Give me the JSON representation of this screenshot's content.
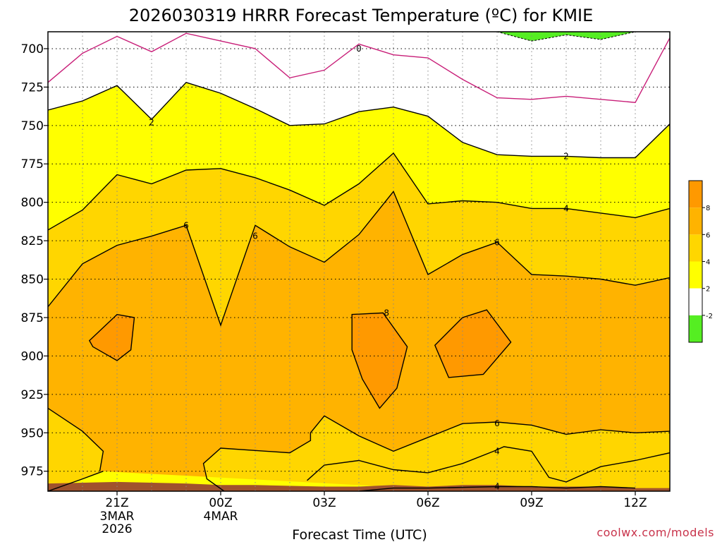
{
  "chart_data": {
    "type": "contour",
    "title": "2026030319 HRRR Forecast Temperature (ºC) for KMIE",
    "xlabel": "Forecast Time (UTC)",
    "ylabel": "",
    "y_scale": "pressure-inverted",
    "ylim": [
      988,
      689
    ],
    "y_ticks": [
      700,
      725,
      750,
      775,
      800,
      825,
      850,
      875,
      900,
      925,
      950,
      975
    ],
    "x_ticks": [
      {
        "hour": 2,
        "label": "21Z",
        "sub": [
          "3MAR",
          "2026"
        ]
      },
      {
        "hour": 5,
        "label": "00Z",
        "sub": [
          "4MAR"
        ]
      },
      {
        "hour": 8,
        "label": "03Z",
        "sub": []
      },
      {
        "hour": 11,
        "label": "06Z",
        "sub": []
      },
      {
        "hour": 14,
        "label": "09Z",
        "sub": []
      },
      {
        "hour": 17,
        "label": "12Z",
        "sub": []
      }
    ],
    "xlim": [
      0,
      18
    ],
    "grid": true,
    "colorbar": {
      "position": "right",
      "labels": [
        "8",
        "6",
        "4",
        "2",
        "-2"
      ],
      "bands": [
        {
          "range": [
            8,
            10
          ],
          "color": "#ff9900"
        },
        {
          "range": [
            6,
            8
          ],
          "color": "#ffb300"
        },
        {
          "range": [
            4,
            6
          ],
          "color": "#ffd600"
        },
        {
          "range": [
            2,
            4
          ],
          "color": "#ffff00"
        },
        {
          "range": [
            -2,
            2
          ],
          "color": "#ffffff"
        },
        {
          "range": [
            -4,
            -2
          ],
          "color": "#55ee22"
        }
      ]
    },
    "contours": [
      {
        "level": 0,
        "label": "0",
        "color": "#c81e78",
        "points": [
          [
            0,
            722
          ],
          [
            1,
            703
          ],
          [
            2,
            692
          ],
          [
            3,
            702
          ],
          [
            4,
            690
          ],
          [
            5,
            695
          ],
          [
            6,
            700
          ],
          [
            7,
            719
          ],
          [
            8,
            714
          ],
          [
            9,
            697
          ],
          [
            10,
            704
          ],
          [
            11,
            706
          ],
          [
            12,
            720
          ],
          [
            13,
            732
          ],
          [
            14,
            733
          ],
          [
            15,
            731
          ],
          [
            16,
            733
          ],
          [
            17,
            735
          ],
          [
            18,
            693
          ]
        ]
      },
      {
        "level": 2,
        "label": "2",
        "points": [
          [
            0,
            740
          ],
          [
            1,
            734
          ],
          [
            2,
            724
          ],
          [
            3,
            746
          ],
          [
            4,
            722
          ],
          [
            5,
            729
          ],
          [
            6,
            739
          ],
          [
            7,
            750
          ],
          [
            8,
            749
          ],
          [
            9,
            741
          ],
          [
            10,
            738
          ],
          [
            11,
            744
          ],
          [
            12,
            761
          ],
          [
            13,
            769
          ],
          [
            14,
            770
          ],
          [
            15,
            770
          ],
          [
            16,
            771
          ],
          [
            17,
            771
          ],
          [
            18,
            749
          ]
        ]
      },
      {
        "level": 4,
        "label": "4",
        "points": [
          [
            0,
            818
          ],
          [
            1,
            805
          ],
          [
            2,
            782
          ],
          [
            3,
            788
          ],
          [
            4,
            779
          ],
          [
            5,
            778
          ],
          [
            6,
            784
          ],
          [
            7,
            792
          ],
          [
            8,
            802
          ],
          [
            9,
            788
          ],
          [
            10,
            768
          ],
          [
            11,
            801
          ],
          [
            12,
            799
          ],
          [
            13,
            800
          ],
          [
            14,
            804
          ],
          [
            15,
            804
          ],
          [
            16,
            807
          ],
          [
            17,
            810
          ],
          [
            18,
            804
          ]
        ]
      },
      {
        "level": 6,
        "label": "6",
        "points": [
          [
            0,
            868
          ],
          [
            1,
            840
          ],
          [
            2,
            828
          ],
          [
            3,
            822
          ],
          [
            4,
            815
          ],
          [
            5,
            880
          ],
          [
            6,
            815
          ],
          [
            7,
            829
          ],
          [
            8,
            839
          ],
          [
            9,
            821
          ],
          [
            10,
            793
          ],
          [
            11,
            847
          ],
          [
            12,
            834
          ],
          [
            13,
            826
          ],
          [
            14,
            847
          ],
          [
            15,
            848
          ],
          [
            16,
            850
          ],
          [
            17,
            854
          ],
          [
            18,
            849
          ]
        ]
      },
      {
        "level": 8,
        "label": "8",
        "closed": true,
        "points": [
          [
            8.8,
            873
          ],
          [
            9.7,
            872
          ],
          [
            10.4,
            894
          ],
          [
            10.1,
            921
          ],
          [
            9.6,
            934
          ],
          [
            9.1,
            915
          ],
          [
            8.8,
            896
          ]
        ]
      },
      {
        "level": 8,
        "label": "",
        "closed": true,
        "points": [
          [
            11.2,
            893
          ],
          [
            12,
            875
          ],
          [
            12.7,
            870
          ],
          [
            13.4,
            891
          ],
          [
            12.6,
            912
          ],
          [
            11.6,
            914
          ]
        ]
      },
      {
        "level": 8,
        "label": "",
        "closed": true,
        "points": [
          [
            1.2,
            890
          ],
          [
            2,
            873
          ],
          [
            2.5,
            875
          ],
          [
            2.4,
            896
          ],
          [
            2,
            903
          ],
          [
            1.3,
            894
          ]
        ]
      },
      {
        "level": 6,
        "label": "6",
        "points": [
          [
            0,
            934
          ],
          [
            1,
            949
          ],
          [
            1.6,
            962
          ],
          [
            1.5,
            975
          ]
        ]
      },
      {
        "level": 6,
        "label": "",
        "points": [
          [
            18,
            949
          ],
          [
            17,
            950
          ],
          [
            16,
            948
          ],
          [
            15,
            951
          ],
          [
            14,
            945
          ],
          [
            13,
            943
          ],
          [
            12,
            944
          ],
          [
            11,
            953
          ],
          [
            10,
            962
          ],
          [
            9,
            952
          ],
          [
            8,
            939
          ],
          [
            7.6,
            950
          ],
          [
            7.6,
            955
          ],
          [
            7,
            963
          ],
          [
            5,
            960
          ],
          [
            4.5,
            970
          ],
          [
            4.6,
            980
          ],
          [
            5.1,
            988
          ]
        ]
      },
      {
        "level": 4,
        "label": "4",
        "points": [
          [
            0,
            988
          ],
          [
            1,
            980
          ],
          [
            1.6,
            975
          ]
        ]
      },
      {
        "level": 4,
        "label": "",
        "points": [
          [
            7.5,
            981
          ],
          [
            8,
            971
          ],
          [
            9,
            968
          ],
          [
            10,
            974
          ],
          [
            11,
            976
          ],
          [
            12,
            970
          ],
          [
            12.9,
            962
          ],
          [
            13.2,
            959
          ],
          [
            14,
            962
          ],
          [
            14.5,
            979
          ],
          [
            15,
            982
          ],
          [
            16,
            972
          ],
          [
            17,
            968
          ],
          [
            18,
            963
          ]
        ]
      },
      {
        "level": 4,
        "label": "",
        "points": [
          [
            9,
            988
          ],
          [
            10,
            986
          ],
          [
            11,
            986
          ],
          [
            13,
            985
          ],
          [
            14,
            985
          ],
          [
            15,
            986
          ],
          [
            16,
            985
          ],
          [
            17,
            986
          ]
        ]
      }
    ],
    "contour_labels": [
      {
        "text": "0",
        "x": 9.0,
        "y": 700
      },
      {
        "text": "2",
        "x": 3.0,
        "y": 748
      },
      {
        "text": "2",
        "x": 15.0,
        "y": 770
      },
      {
        "text": "4",
        "x": 15.0,
        "y": 804
      },
      {
        "text": "6",
        "x": 4.0,
        "y": 815
      },
      {
        "text": "6",
        "x": 6.0,
        "y": 822
      },
      {
        "text": "6",
        "x": 13.0,
        "y": 826
      },
      {
        "text": "6",
        "x": 13.0,
        "y": 944
      },
      {
        "text": "4",
        "x": 13.0,
        "y": 962
      },
      {
        "text": "4",
        "x": 13.0,
        "y": 985
      },
      {
        "text": "8",
        "x": 9.8,
        "y": 872
      }
    ],
    "regions": [
      {
        "level": -2,
        "points": [
          [
            13,
            689
          ],
          [
            14,
            695
          ],
          [
            15,
            691
          ],
          [
            16,
            694
          ],
          [
            17,
            689
          ]
        ]
      }
    ],
    "terrain": {
      "color": "#a0522d",
      "surface": [
        [
          0,
          983
        ],
        [
          2,
          982
        ],
        [
          4,
          983
        ],
        [
          5,
          984
        ],
        [
          6,
          984
        ],
        [
          8,
          985
        ],
        [
          9,
          985
        ],
        [
          10,
          984
        ],
        [
          11,
          985
        ],
        [
          12,
          984
        ],
        [
          13,
          984
        ],
        [
          14,
          985
        ],
        [
          15,
          985
        ],
        [
          16,
          985
        ],
        [
          17,
          986
        ],
        [
          18,
          986
        ]
      ]
    }
  },
  "credit": "coolwx.com/models"
}
